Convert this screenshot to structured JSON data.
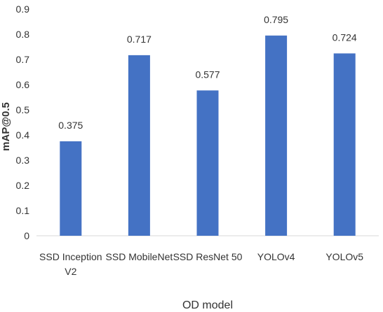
{
  "chart_data": {
    "type": "bar",
    "title": "",
    "xlabel": "OD model",
    "ylabel": "mAP@0.5",
    "categories": [
      "SSD Inception V2",
      "SSD MobileNet",
      "SSD ResNet 50",
      "YOLOv4",
      "YOLOv5"
    ],
    "category_lines": [
      [
        "SSD Inception",
        "V2"
      ],
      [
        "SSD MobileNet"
      ],
      [
        "SSD ResNet 50"
      ],
      [
        "YOLOv4"
      ],
      [
        "YOLOv5"
      ]
    ],
    "values": [
      0.375,
      0.717,
      0.577,
      0.795,
      0.724
    ],
    "data_labels": [
      "0.375",
      "0.717",
      "0.577",
      "0.795",
      "0.724"
    ],
    "yticks": [
      "0",
      "0.1",
      "0.2",
      "0.3",
      "0.4",
      "0.5",
      "0.6",
      "0.7",
      "0.8",
      "0.9"
    ],
    "ylim": [
      0,
      0.9
    ],
    "grid": false,
    "legend": "none",
    "bar_color": "#4472c4",
    "axis_color": "#d9d9d9"
  }
}
